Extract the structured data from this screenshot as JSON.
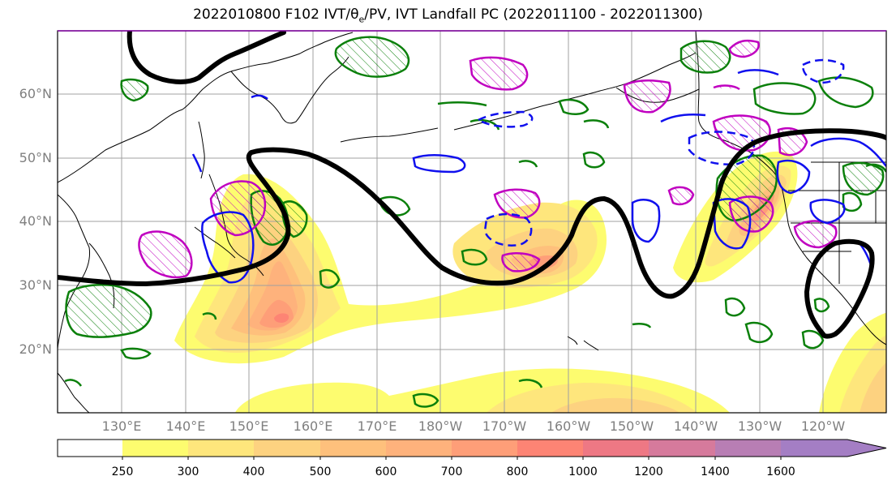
{
  "title": {
    "run": "2022010800",
    "forecast": "F102",
    "fields_prefix": "IVT/",
    "theta_sym": "θ",
    "theta_sub": "e",
    "fields_suffix": "/PV, IVT Landfall PC",
    "period": "(2022011100 - 2022011300)"
  },
  "lat_labels": [
    "60°N",
    "50°N",
    "40°N",
    "30°N",
    "20°N"
  ],
  "lon_labels": [
    "130°E",
    "140°E",
    "150°E",
    "160°E",
    "170°E",
    "180°W",
    "170°W",
    "160°W",
    "150°W",
    "140°W",
    "130°W",
    "120°W"
  ],
  "colorbar": {
    "levels": [
      "250",
      "300",
      "400",
      "500",
      "600",
      "700",
      "800",
      "1000",
      "1200",
      "1400",
      "1600"
    ],
    "colors": [
      "#ffffff",
      "#fdfc6f",
      "#fee67c",
      "#fdd280",
      "#fec07c",
      "#feb27c",
      "#fe9e78",
      "#fd8474",
      "#ee7884",
      "#d67a9c",
      "#b87eb4",
      "#a47ec4"
    ]
  },
  "colors": {
    "theta_contour": "#000000",
    "pv_green": "#0b800b",
    "pv_magenta": "#c000c0",
    "pv_blue": "#1010ee",
    "coast": "#000000",
    "grid": "#a0a0a0",
    "tick_label": "#7f7f7f"
  }
}
